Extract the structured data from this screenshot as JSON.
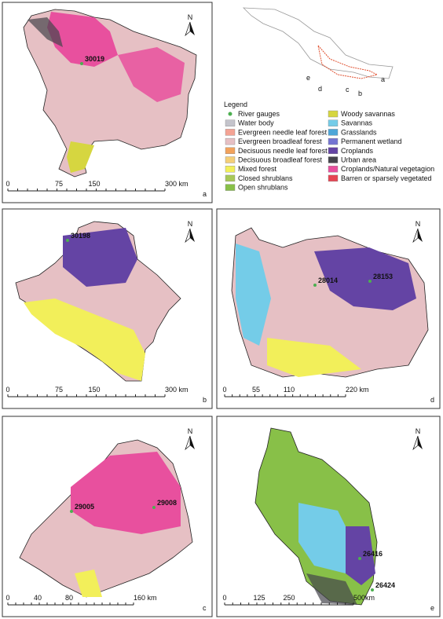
{
  "panels": [
    {
      "letter": "a",
      "gauges": [
        "30019"
      ],
      "scale": [
        "0",
        "75",
        "150",
        "300 km"
      ]
    },
    {
      "letter": "b",
      "gauges": [
        "30198"
      ],
      "scale": [
        "0",
        "75",
        "150",
        "300 km"
      ]
    },
    {
      "letter": "d",
      "gauges": [
        "28014",
        "28153"
      ],
      "scale": [
        "0",
        "55",
        "110",
        "220 km"
      ]
    },
    {
      "letter": "c",
      "gauges": [
        "29005",
        "29008"
      ],
      "scale": [
        "0",
        "40",
        "80",
        "160 km"
      ]
    },
    {
      "letter": "e",
      "gauges": [
        "26416",
        "26424"
      ],
      "scale": [
        "0",
        "125",
        "250",
        "500km"
      ]
    }
  ],
  "north": "N",
  "inset": {
    "labels": [
      "a",
      "b",
      "c",
      "d",
      "e"
    ]
  },
  "legend": {
    "title": "Legend",
    "items": [
      {
        "label": "River gauges",
        "color": "#4caf50",
        "kind": "dot"
      },
      {
        "label": "Water body",
        "color": "#c4c4cc"
      },
      {
        "label": "Evergreen needle leaf forest",
        "color": "#f4a394"
      },
      {
        "label": "Evergreen broadleaf forest",
        "color": "#e6c0c4"
      },
      {
        "label": "Decisuous needle leaf forest",
        "color": "#f2a25c"
      },
      {
        "label": "Decisuous broadleaf forest",
        "color": "#f4cf78"
      },
      {
        "label": "Mixed forest",
        "color": "#f2ef5a"
      },
      {
        "label": "Closed shrublans",
        "color": "#a8c858"
      },
      {
        "label": "Open shrublans",
        "color": "#88c048"
      },
      {
        "label": "Woody savannas",
        "color": "#d6d640"
      },
      {
        "label": "Savannas",
        "color": "#74cce8"
      },
      {
        "label": "Grasslands",
        "color": "#4ea6d8"
      },
      {
        "label": "Permanent wetland",
        "color": "#7474d2"
      },
      {
        "label": "Croplands",
        "color": "#6444a4"
      },
      {
        "label": "Urban area",
        "color": "#45454c"
      },
      {
        "label": "Croplands/Natural vegetagion",
        "color": "#e8509e"
      },
      {
        "label": "Barren or sparsely vegetated",
        "color": "#e64452"
      }
    ]
  }
}
